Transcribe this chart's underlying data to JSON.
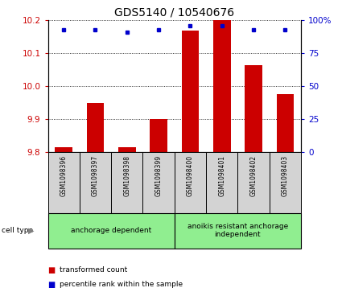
{
  "title": "GDS5140 / 10540676",
  "samples": [
    "GSM1098396",
    "GSM1098397",
    "GSM1098398",
    "GSM1098399",
    "GSM1098400",
    "GSM1098401",
    "GSM1098402",
    "GSM1098403"
  ],
  "transformed_counts": [
    9.815,
    9.95,
    9.815,
    9.9,
    10.17,
    10.2,
    10.065,
    9.975
  ],
  "percentile_ranks": [
    93,
    93,
    91,
    93,
    96,
    96,
    93,
    93
  ],
  "ylim_left": [
    9.8,
    10.2
  ],
  "ylim_right": [
    0,
    100
  ],
  "yticks_left": [
    9.8,
    9.9,
    10.0,
    10.1,
    10.2
  ],
  "yticks_right": [
    0,
    25,
    50,
    75,
    100
  ],
  "bar_color": "#cc0000",
  "dot_color": "#0000cc",
  "bar_width": 0.55,
  "groups": [
    {
      "label": "anchorage dependent",
      "indices": [
        0,
        1,
        2,
        3
      ],
      "color": "#90ee90"
    },
    {
      "label": "anoikis resistant anchorage\nindependent",
      "indices": [
        4,
        5,
        6,
        7
      ],
      "color": "#90ee90"
    }
  ],
  "cell_type_label": "cell type",
  "legend_items": [
    {
      "color": "#cc0000",
      "label": "transformed count"
    },
    {
      "color": "#0000cc",
      "label": "percentile rank within the sample"
    }
  ],
  "tick_label_color_left": "#cc0000",
  "tick_label_color_right": "#0000cc",
  "label_box_color": "#d3d3d3",
  "title_fontsize": 10
}
